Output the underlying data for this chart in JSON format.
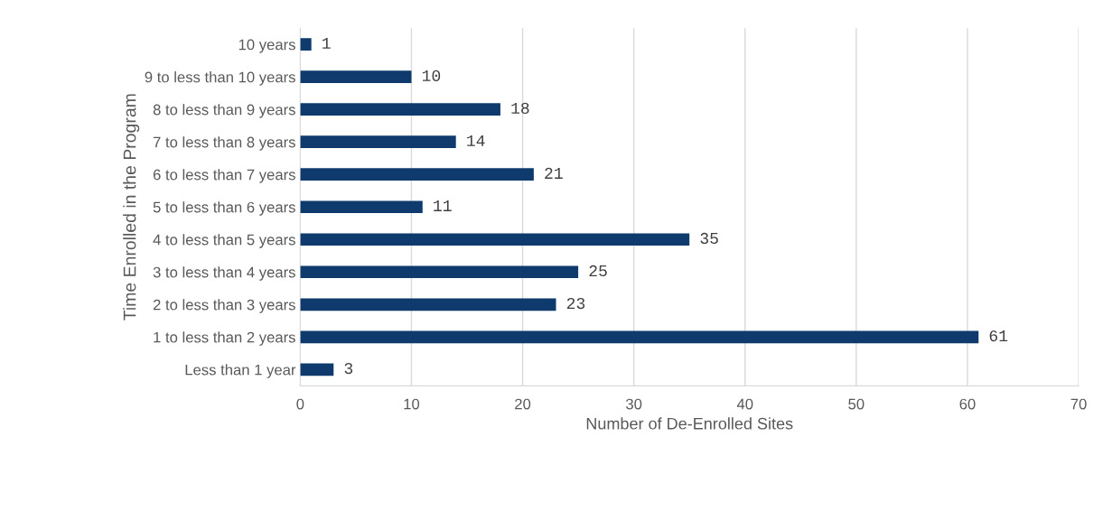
{
  "chart_data": {
    "type": "bar",
    "orientation": "horizontal",
    "xlabel": "Number of De-Enrolled Sites",
    "ylabel": "Time Enrolled in the Program",
    "categories": [
      "10 years",
      "9 to less than 10 years",
      "8 to less than 9 years",
      "7 to less than 8 years",
      "6 to less than 7 years",
      "5 to less than 6 years",
      "4 to less than 5 years",
      "3 to less than 4 years",
      "2 to less than 3 years",
      "1 to less than 2 years",
      "Less than 1 year"
    ],
    "values": [
      1,
      10,
      18,
      14,
      21,
      11,
      35,
      25,
      23,
      61,
      3
    ],
    "color": "#0e3a6e",
    "xlim": [
      0,
      70
    ],
    "xticks": [
      0,
      10,
      20,
      30,
      40,
      50,
      60,
      70
    ],
    "grid": "x",
    "data_labels": true
  }
}
